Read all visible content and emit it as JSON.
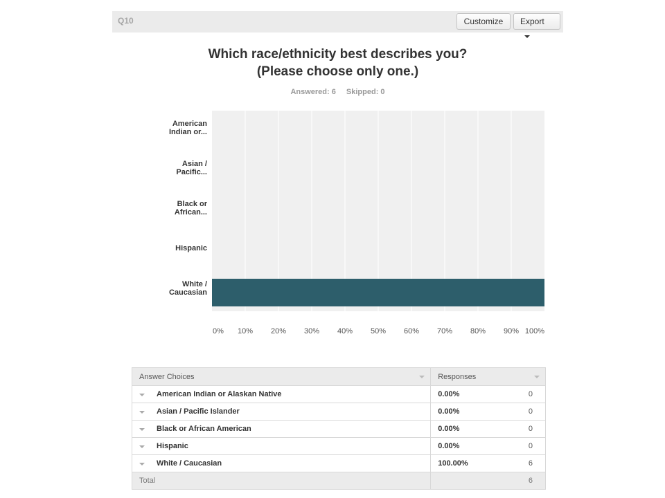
{
  "question": {
    "number": "Q10",
    "customize_label": "Customize",
    "export_label": "Export",
    "title_line1": "Which race/ethnicity best describes you?",
    "title_line2": "(Please choose only one.)",
    "answered": "Answered: 6",
    "skipped": "Skipped: 0"
  },
  "chart_data": {
    "type": "bar",
    "orientation": "horizontal",
    "categories": [
      [
        "American",
        "Indian or..."
      ],
      [
        "Asian /",
        "Pacific..."
      ],
      [
        "Black or",
        "African..."
      ],
      [
        "Hispanic"
      ],
      [
        "White /",
        "Caucasian"
      ]
    ],
    "values": [
      0,
      0,
      0,
      0,
      100
    ],
    "x_ticks": [
      "0%",
      "10%",
      "20%",
      "30%",
      "40%",
      "50%",
      "60%",
      "70%",
      "80%",
      "90%",
      "100%"
    ],
    "xlim": [
      0,
      100
    ],
    "grid": true,
    "colors": {
      "bar": "#2d5e6b",
      "plot_bg": "#f0f0f0",
      "grid": "#ffffff"
    }
  },
  "table": {
    "headers": {
      "choices": "Answer Choices",
      "responses": "Responses"
    },
    "rows": [
      {
        "choice": "American Indian or Alaskan Native",
        "pct": "0.00%",
        "count": "0"
      },
      {
        "choice": "Asian / Pacific Islander",
        "pct": "0.00%",
        "count": "0"
      },
      {
        "choice": "Black or African American",
        "pct": "0.00%",
        "count": "0"
      },
      {
        "choice": "Hispanic",
        "pct": "0.00%",
        "count": "0"
      },
      {
        "choice": "White / Caucasian",
        "pct": "100.00%",
        "count": "6"
      }
    ],
    "total_label": "Total",
    "total_count": "6"
  }
}
